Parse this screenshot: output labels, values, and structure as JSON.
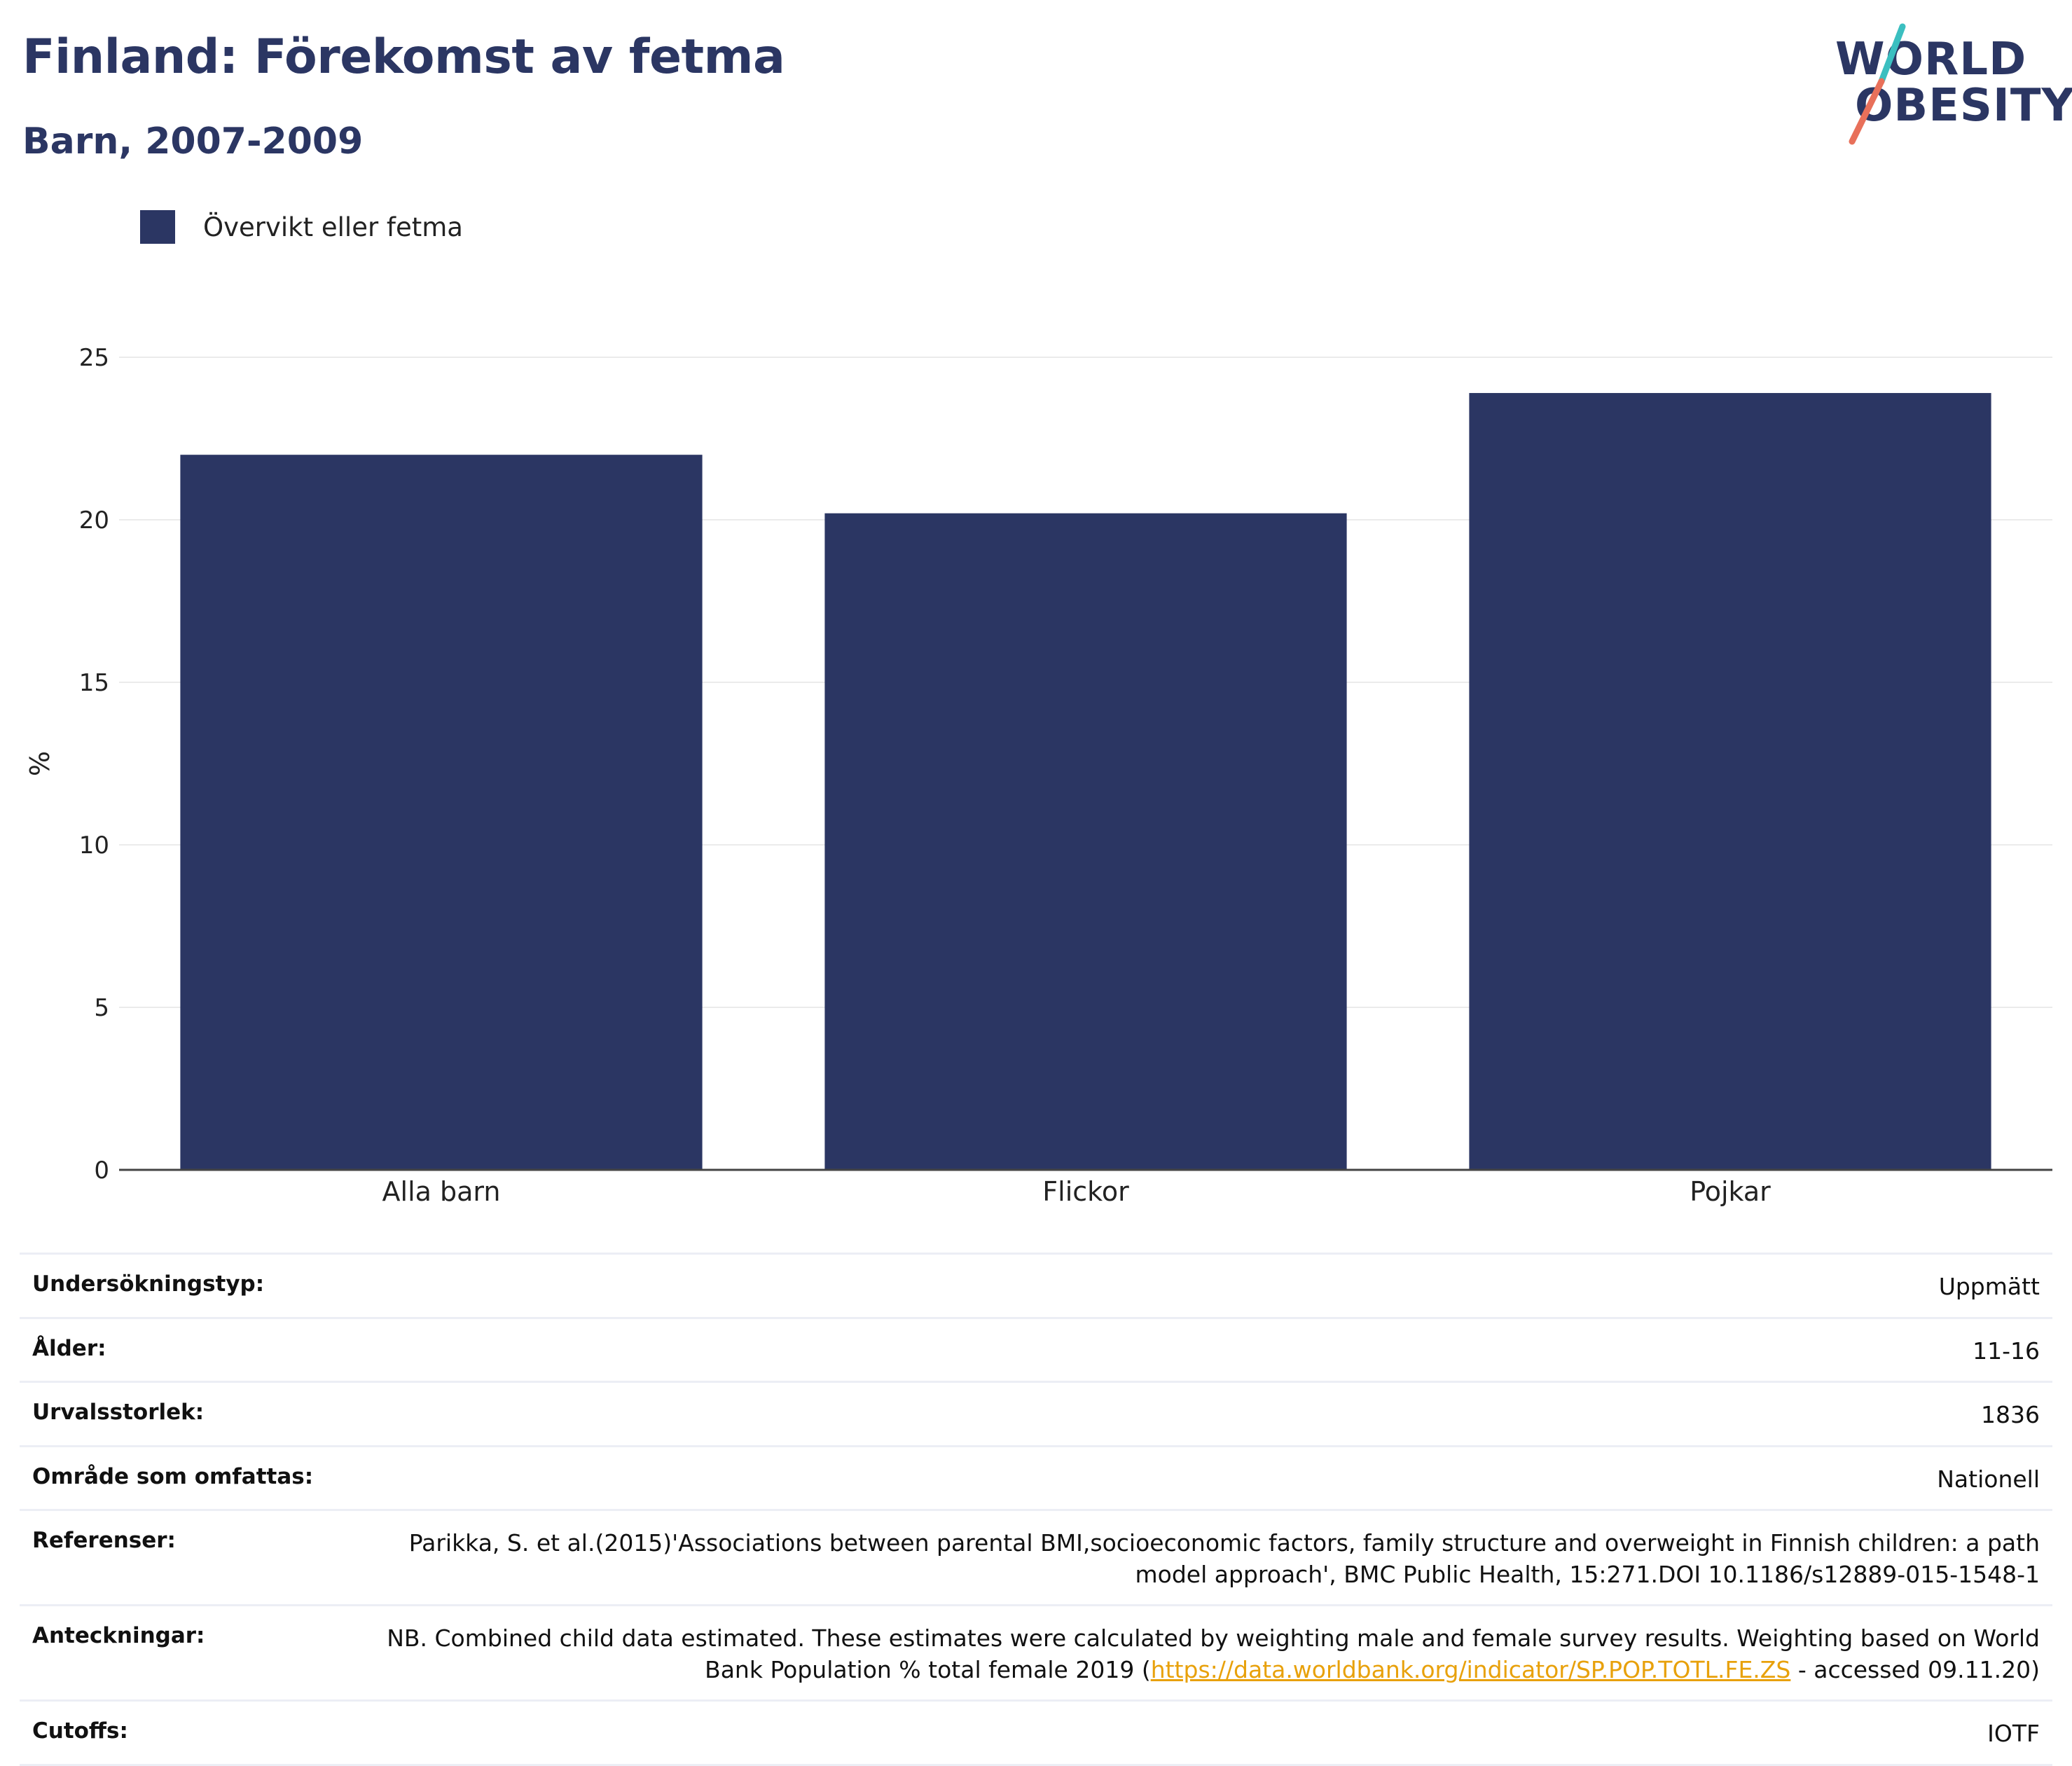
{
  "header": {
    "title": "Finland: Förekomst av fetma",
    "subtitle": "Barn, 2007-2009"
  },
  "logo": {
    "line1": "WORLD",
    "line2": "OBESITY",
    "colors": {
      "text": "#2b3663",
      "slash_top": "#3bbfc0",
      "slash_bottom": "#e8705a"
    }
  },
  "legend": {
    "items": [
      {
        "label": "Övervikt eller fetma",
        "color": "#2b3663"
      }
    ]
  },
  "chart_data": {
    "type": "bar",
    "title": "Finland: Förekomst av fetma",
    "subtitle": "Barn, 2007-2009",
    "categories": [
      "Alla barn",
      "Flickor",
      "Pojkar"
    ],
    "series": [
      {
        "name": "Övervikt eller fetma",
        "values": [
          22.0,
          20.2,
          23.9
        ],
        "color": "#2b3663"
      }
    ],
    "xlabel": "",
    "ylabel": "%",
    "ylim": [
      0,
      25
    ],
    "yticks": [
      0,
      5,
      10,
      15,
      20,
      25
    ],
    "grid": true,
    "legend_position": "top-left"
  },
  "info": {
    "rows": [
      {
        "label": "Undersökningstyp:",
        "value": "Uppmätt"
      },
      {
        "label": "Ålder:",
        "value": "11-16"
      },
      {
        "label": "Urvalsstorlek:",
        "value": "1836"
      },
      {
        "label": "Område som omfattas:",
        "value": "Nationell"
      },
      {
        "label": "Referenser:",
        "value": "Parikka, S. et al.(2015)'Associations between parental BMI,socioeconomic factors, family structure and overweight in Finnish children: a path model approach', BMC Public Health, 15:271.DOI 10.1186/s12889-015-1548-1"
      },
      {
        "label": "Anteckningar:",
        "value_before": "NB. Combined child data estimated. These estimates were calculated by weighting male and female survey results. Weighting based on World Bank Population % total female 2019 (",
        "link": "https://data.worldbank.org/indicator/SP.POP.TOTL.FE.ZS",
        "value_after": " - accessed 09.11.20)"
      },
      {
        "label": "Cutoffs:",
        "value": "IOTF"
      }
    ]
  }
}
